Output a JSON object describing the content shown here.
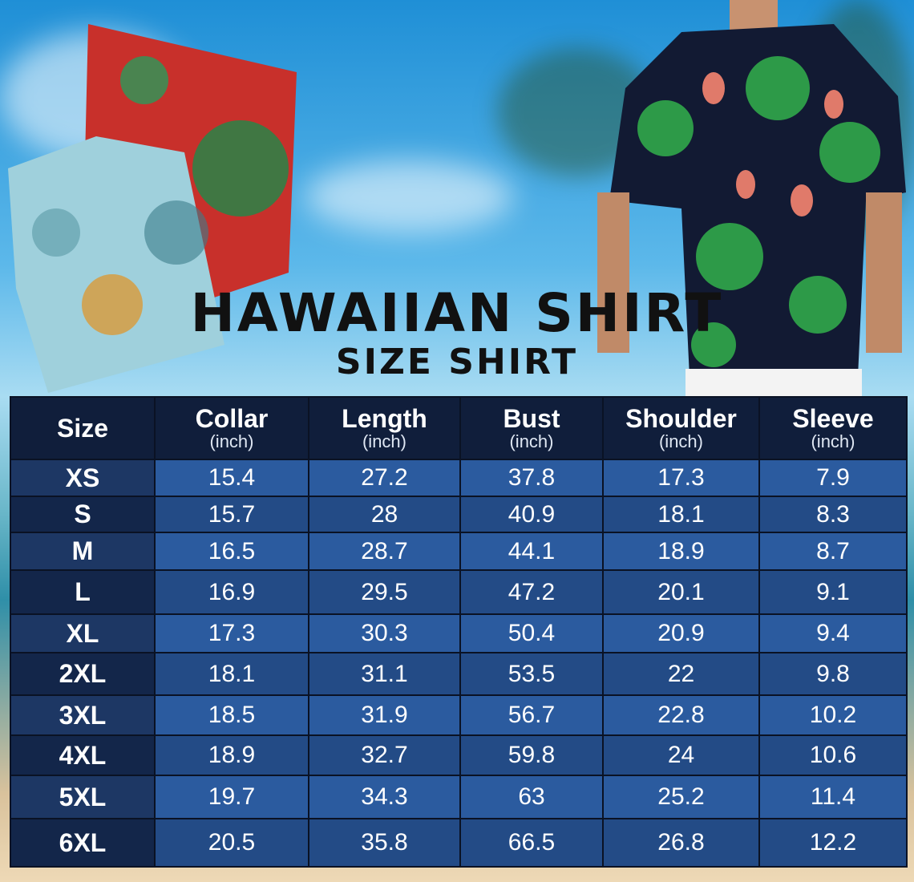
{
  "title": "HAWAIIAN SHIRT",
  "subtitle": "SIZE SHIRT",
  "colors": {
    "header_bg": "#101e3b",
    "row_light": "#2b5b9f",
    "row_dark": "#234b86",
    "size_col": "#13264a"
  },
  "table": {
    "headers": [
      {
        "label": "Size",
        "unit": ""
      },
      {
        "label": "Collar",
        "unit": "(inch)"
      },
      {
        "label": "Length",
        "unit": "(inch)"
      },
      {
        "label": "Bust",
        "unit": "(inch)"
      },
      {
        "label": "Shoulder",
        "unit": "(inch)"
      },
      {
        "label": "Sleeve",
        "unit": "(inch)"
      }
    ],
    "rows": [
      [
        "XS",
        "15.4",
        "27.2",
        "37.8",
        "17.3",
        "7.9"
      ],
      [
        "S",
        "15.7",
        "28",
        "40.9",
        "18.1",
        "8.3"
      ],
      [
        "M",
        "16.5",
        "28.7",
        "44.1",
        "18.9",
        "8.7"
      ],
      [
        "L",
        "16.9",
        "29.5",
        "47.2",
        "20.1",
        "9.1"
      ],
      [
        "XL",
        "17.3",
        "30.3",
        "50.4",
        "20.9",
        "9.4"
      ],
      [
        "2XL",
        "18.1",
        "31.1",
        "53.5",
        "22",
        "9.8"
      ],
      [
        "3XL",
        "18.5",
        "31.9",
        "56.7",
        "22.8",
        "10.2"
      ],
      [
        "4XL",
        "18.9",
        "32.7",
        "59.8",
        "24",
        "10.6"
      ],
      [
        "5XL",
        "19.7",
        "34.3",
        "63",
        "25.2",
        "11.4"
      ],
      [
        "6XL",
        "20.5",
        "35.8",
        "66.5",
        "26.8",
        "12.2"
      ]
    ]
  }
}
